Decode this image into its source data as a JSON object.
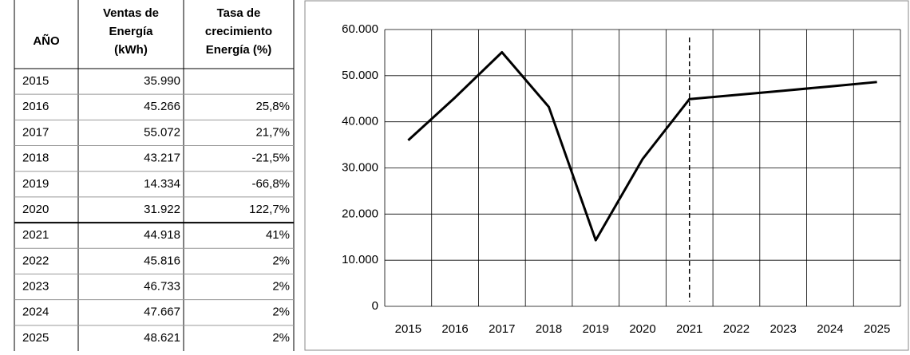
{
  "table": {
    "headers": [
      [
        "AÑO"
      ],
      [
        "Ventas de",
        "Energía",
        "(kWh)"
      ],
      [
        "Tasa de",
        "crecimiento",
        "Energía (%)"
      ]
    ],
    "rows": [
      [
        "2015",
        "35.990",
        null
      ],
      [
        "2016",
        "45.266",
        "25,8%"
      ],
      [
        "2017",
        "55.072",
        "21,7%"
      ],
      [
        "2018",
        "43.217",
        "-21,5%"
      ],
      [
        "2019",
        "14.334",
        "-66,8%"
      ],
      [
        "2020",
        "31.922",
        "122,7%"
      ],
      [
        "2021",
        "44.918",
        "41%"
      ],
      [
        "2022",
        "45.816",
        "2%"
      ],
      [
        "2023",
        "46.733",
        "2%"
      ],
      [
        "2024",
        "47.667",
        "2%"
      ],
      [
        "2025",
        "48.621",
        "2%"
      ]
    ]
  },
  "chart_data": {
    "type": "line",
    "categories": [
      "2015",
      "2016",
      "2017",
      "2018",
      "2019",
      "2020",
      "2021",
      "2022",
      "2023",
      "2024",
      "2025"
    ],
    "values": [
      35990,
      45266,
      55072,
      43217,
      14334,
      31922,
      44918,
      45816,
      46733,
      47667,
      48621
    ],
    "color": "#000000",
    "ylim": [
      0,
      60000
    ],
    "yticks": [
      0,
      {
        "value": 10000,
        "label": "10.000"
      },
      {
        "value": 20000,
        "label": "20.000"
      },
      {
        "value": 30000,
        "label": "30.000"
      },
      {
        "value": 40000,
        "label": "40.000"
      },
      {
        "value": 50000,
        "label": "50.000"
      },
      {
        "value": 60000,
        "label": "60.000"
      }
    ],
    "grid": true,
    "dashed_line_at": "2021"
  }
}
